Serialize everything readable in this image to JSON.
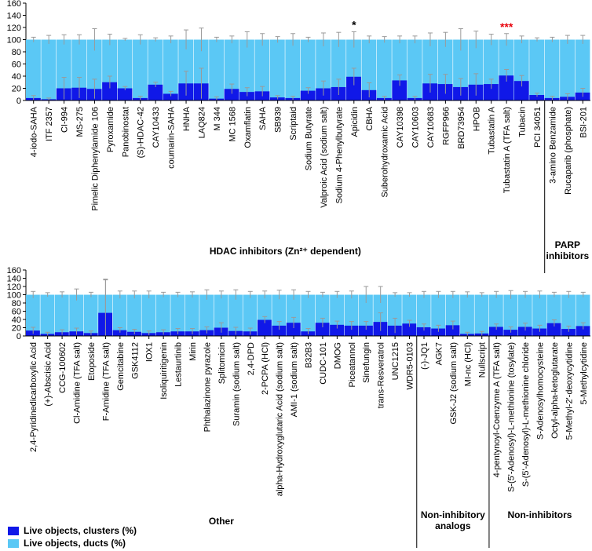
{
  "colors": {
    "ducts": "#5bc8f5",
    "clusters": "#1018e8",
    "error": "#9a9a9a",
    "sig_black": "#000000",
    "sig_red": "#e8000b"
  },
  "legend": [
    {
      "label": "Live objects, clusters (%)",
      "color": "#1018e8"
    },
    {
      "label": "Live objects, ducts (%)",
      "color": "#5bc8f5"
    }
  ],
  "chart_data": [
    {
      "type": "bar",
      "ylim": [
        0,
        160
      ],
      "yticks": [
        0,
        20,
        40,
        60,
        80,
        100,
        120,
        140,
        160
      ],
      "categories": [
        "4-iodo-SAHA",
        "ITF 2357",
        "CI-994",
        "MS-275",
        "Pimelic Diphenylamide 106",
        "Pyroxamide",
        "Panobinostat",
        "(S)-HDAC-42",
        "CAY10433",
        "coumarin-SAHA",
        "HNHA",
        "LAQ824",
        "M 344",
        "MC 1568",
        "Oxamflatin",
        "SAHA",
        "SB939",
        "Scriptaid",
        "Sodium Butyrate",
        "Valproic Acid (sodium salt)",
        "Sodium 4-Phenylbutyrate",
        "Apicidin",
        "CBHA",
        "Suberohydroxamic Acid",
        "CAY10398",
        "CAY10603",
        "CAY10683",
        "RGFP966",
        "BRD73954",
        "HPOB",
        "Tubastatin A",
        "Tubastatin A (TFA salt)",
        "Tubacin",
        "PCI 34051",
        "3-amino Benzamide",
        "Rucaparib (phosphate)",
        "BSI-201"
      ],
      "series": [
        {
          "name": "Live objects, ducts (%)",
          "values": [
            100,
            100,
            100,
            100,
            100,
            100,
            100,
            100,
            100,
            100,
            100,
            100,
            100,
            100,
            100,
            100,
            100,
            100,
            100,
            100,
            100,
            100,
            100,
            100,
            100,
            100,
            100,
            100,
            100,
            100,
            100,
            100,
            100,
            100,
            100,
            100,
            100
          ],
          "errors": [
            4,
            7,
            8,
            8,
            18,
            9,
            2,
            8,
            3,
            6,
            16,
            19,
            4,
            6,
            13,
            10,
            5,
            10,
            4,
            11,
            12,
            13,
            6,
            5,
            6,
            6,
            11,
            12,
            18,
            14,
            9,
            10,
            6,
            3,
            4,
            7,
            7
          ]
        },
        {
          "name": "Live objects, clusters (%)",
          "values": [
            4,
            2,
            20,
            21,
            19,
            30,
            20,
            4,
            26,
            11,
            28,
            28,
            3,
            19,
            14,
            15,
            5,
            4,
            16,
            20,
            22,
            39,
            17,
            4,
            33,
            4,
            28,
            27,
            22,
            26,
            27,
            41,
            32,
            9,
            4,
            6,
            13
          ],
          "errors": [
            4,
            2,
            18,
            17,
            16,
            10,
            3,
            3,
            4,
            4,
            20,
            25,
            3,
            8,
            7,
            8,
            3,
            3,
            5,
            12,
            13,
            14,
            12,
            3,
            9,
            3,
            15,
            16,
            14,
            18,
            8,
            10,
            9,
            3,
            3,
            5,
            7
          ]
        }
      ],
      "annotations": [
        {
          "category": "Apicidin",
          "text": "*",
          "color": "#000000"
        },
        {
          "category": "Tubastatin A (TFA salt)",
          "text": "***",
          "color": "#e8000b"
        }
      ],
      "groups": [
        {
          "label": "HDAC inhibitors (Zn²⁺ dependent)",
          "from": 0,
          "to": 33
        },
        {
          "label": "PARP inhibitors",
          "from": 34,
          "to": 36
        }
      ]
    },
    {
      "type": "bar",
      "ylim": [
        0,
        160
      ],
      "yticks": [
        0,
        20,
        40,
        60,
        80,
        100,
        120,
        140,
        160
      ],
      "categories": [
        "2,4-Pyridinedicarboxylic Acid",
        "(+)-Abscisic Acid",
        "CCG-100602",
        "Cl-Amidine (TFA salt)",
        "Etoposide",
        "F-Amidine (TFA salt)",
        "Gemcitabine",
        "GSK4112",
        "IOX1",
        "Isoliquiritigenin",
        "Lestaurtinib",
        "Mirin",
        "Phthalazinone pyrazole",
        "Splitomicin",
        "Suramin (sodium salt)",
        "2,4-DPD",
        "2-PCPA (HCl)",
        "alpha-Hydroxyglutaric Acid (sodium salt)",
        "AMI-1 (sodium salt)",
        "B32B3",
        "CUDC-101",
        "DMOG",
        "Piceatannol",
        "Sinefungin",
        "trans-Resveratrol",
        "UNC1215",
        "WDR5-0103",
        "(-)-JQ1",
        "AGK7",
        "GSK-J2 (sodium salt)",
        "MI-nc (HCl)",
        "Nullscript",
        "4-pentynoyl-Coenzyme A (TFA salt)",
        "S-(5'-Adenosyl)-L-methionine (tosylate)",
        "S-(5'-Adenosyl)-L-methionine chloride",
        "S-Adenosylhomocysteine",
        "Octyl-alpha-ketoglutarate",
        "5-Methyl-2'-deoxycytidine",
        "5-Methylcytidine"
      ],
      "series": [
        {
          "name": "Live objects, ducts (%)",
          "values": [
            100,
            100,
            100,
            100,
            100,
            100,
            100,
            100,
            100,
            100,
            100,
            100,
            100,
            100,
            100,
            100,
            100,
            100,
            100,
            100,
            100,
            100,
            100,
            100,
            100,
            100,
            100,
            100,
            100,
            100,
            100,
            100,
            100,
            100,
            100,
            100,
            100,
            100,
            100
          ],
          "errors": [
            8,
            5,
            7,
            14,
            6,
            38,
            9,
            9,
            9,
            6,
            6,
            7,
            12,
            9,
            12,
            8,
            9,
            11,
            12,
            8,
            6,
            8,
            9,
            20,
            20,
            5,
            5,
            8,
            8,
            8,
            7,
            5,
            8,
            10,
            8,
            9,
            6,
            8,
            6
          ]
        },
        {
          "name": "Live objects, clusters (%)",
          "values": [
            13,
            5,
            9,
            11,
            7,
            56,
            14,
            10,
            7,
            9,
            11,
            11,
            14,
            20,
            12,
            11,
            39,
            25,
            32,
            11,
            32,
            27,
            25,
            25,
            34,
            25,
            30,
            21,
            18,
            26,
            5,
            6,
            22,
            15,
            22,
            18,
            31,
            17,
            24
          ],
          "errors": [
            8,
            4,
            6,
            8,
            5,
            80,
            6,
            6,
            5,
            6,
            7,
            7,
            8,
            12,
            9,
            8,
            8,
            10,
            13,
            7,
            11,
            9,
            10,
            10,
            22,
            18,
            8,
            8,
            8,
            10,
            4,
            5,
            7,
            7,
            9,
            8,
            8,
            7,
            8
          ]
        }
      ],
      "annotations": [],
      "groups": [
        {
          "label": "Other",
          "from": 0,
          "to": 26
        },
        {
          "label": "Non-inhibitory analogs",
          "from": 27,
          "to": 31
        },
        {
          "label": "Non-inhibitors",
          "from": 32,
          "to": 38
        }
      ]
    }
  ]
}
